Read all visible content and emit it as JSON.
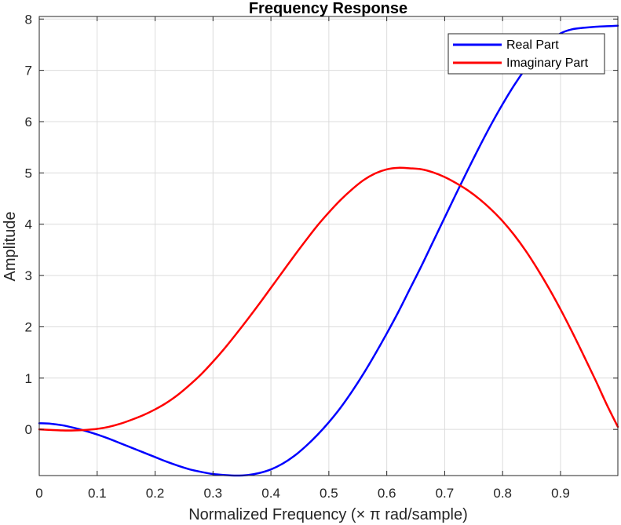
{
  "chart_data": {
    "type": "line",
    "title": "Frequency Response",
    "xlabel": "Normalized Frequency (× π rad/sample)",
    "ylabel": "Amplitude",
    "xlim": [
      0,
      0.999
    ],
    "ylim": [
      -0.9,
      8.05
    ],
    "xticks": [
      0,
      0.1,
      0.2,
      0.3,
      0.4,
      0.5,
      0.6,
      0.7,
      0.8,
      0.9
    ],
    "xtick_labels": [
      "0",
      "0.1",
      "0.2",
      "0.3",
      "0.4",
      "0.5",
      "0.6",
      "0.7",
      "0.8",
      "0.9"
    ],
    "yticks": [
      0,
      1,
      2,
      3,
      4,
      5,
      6,
      7,
      8
    ],
    "ytick_labels": [
      "0",
      "1",
      "2",
      "3",
      "4",
      "5",
      "6",
      "7",
      "8"
    ],
    "grid": true,
    "legend_position": "top-right",
    "x": [
      0,
      0.02,
      0.04,
      0.06,
      0.08,
      0.1,
      0.12,
      0.14,
      0.16,
      0.18,
      0.2,
      0.22,
      0.24,
      0.26,
      0.28,
      0.3,
      0.32,
      0.34,
      0.36,
      0.38,
      0.4,
      0.42,
      0.44,
      0.46,
      0.48,
      0.5,
      0.52,
      0.54,
      0.56,
      0.58,
      0.6,
      0.62,
      0.64,
      0.66,
      0.68,
      0.7,
      0.72,
      0.74,
      0.76,
      0.78,
      0.8,
      0.82,
      0.84,
      0.86,
      0.88,
      0.9,
      0.92,
      0.94,
      0.96,
      0.98,
      0.999
    ],
    "series": [
      {
        "name": "Real Part",
        "color": "#0000ff",
        "values": [
          0.12,
          0.11,
          0.08,
          0.03,
          -0.03,
          -0.1,
          -0.18,
          -0.27,
          -0.36,
          -0.45,
          -0.54,
          -0.63,
          -0.71,
          -0.78,
          -0.83,
          -0.87,
          -0.89,
          -0.9,
          -0.89,
          -0.85,
          -0.78,
          -0.67,
          -0.52,
          -0.33,
          -0.11,
          0.14,
          0.42,
          0.74,
          1.09,
          1.47,
          1.87,
          2.29,
          2.74,
          3.19,
          3.66,
          4.13,
          4.6,
          5.06,
          5.51,
          5.94,
          6.34,
          6.71,
          7.04,
          7.33,
          7.56,
          7.72,
          7.8,
          7.83,
          7.85,
          7.86,
          7.87
        ]
      },
      {
        "name": "Imaginary Part",
        "color": "#ff0000",
        "values": [
          0.0,
          -0.01,
          -0.02,
          -0.02,
          -0.01,
          0.01,
          0.05,
          0.11,
          0.19,
          0.28,
          0.39,
          0.52,
          0.68,
          0.87,
          1.08,
          1.32,
          1.58,
          1.86,
          2.15,
          2.45,
          2.76,
          3.07,
          3.38,
          3.68,
          3.97,
          4.23,
          4.47,
          4.68,
          4.86,
          4.99,
          5.07,
          5.1,
          5.09,
          5.07,
          5.01,
          4.92,
          4.8,
          4.66,
          4.49,
          4.29,
          4.06,
          3.79,
          3.48,
          3.13,
          2.75,
          2.34,
          1.9,
          1.44,
          0.97,
          0.48,
          0.05
        ]
      }
    ]
  }
}
